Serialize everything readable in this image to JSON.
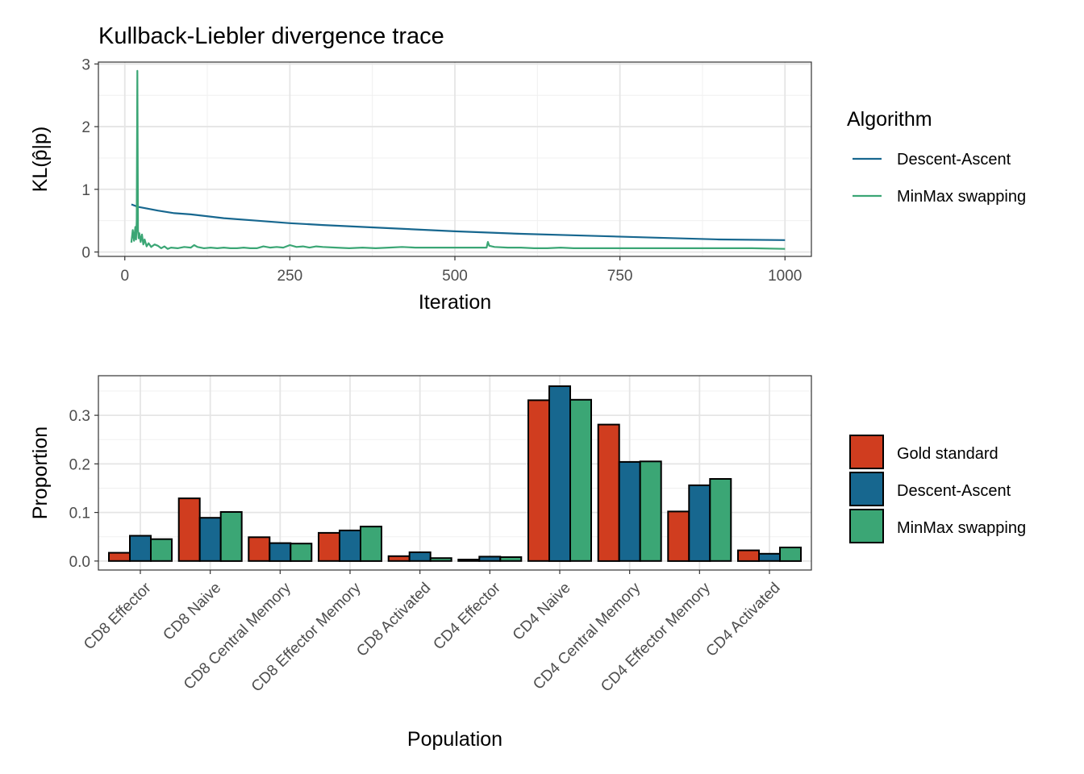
{
  "chart_data": [
    {
      "type": "line",
      "title": "Kullback-Liebler divergence trace",
      "xlabel": "Iteration",
      "ylabel": "KL(p̂|p)",
      "xlim": [
        -40,
        1040
      ],
      "ylim": [
        -0.07,
        3.03
      ],
      "x_ticks": [
        0,
        250,
        500,
        750,
        1000
      ],
      "y_ticks": [
        0,
        1,
        2,
        3
      ],
      "x_tick_labels": [
        "0",
        "250",
        "500",
        "750",
        "1000"
      ],
      "y_tick_labels": [
        "0",
        "1",
        "2",
        "3"
      ],
      "grid": true,
      "legend": {
        "title": "Algorithm",
        "position": "right"
      },
      "series": [
        {
          "name": "Descent-Ascent",
          "color": "#17678F",
          "x": [
            10,
            20,
            30,
            50,
            75,
            100,
            150,
            200,
            250,
            300,
            400,
            500,
            600,
            700,
            800,
            900,
            1000
          ],
          "values": [
            0.76,
            0.72,
            0.7,
            0.66,
            0.62,
            0.6,
            0.54,
            0.5,
            0.46,
            0.43,
            0.38,
            0.33,
            0.29,
            0.26,
            0.23,
            0.2,
            0.19
          ]
        },
        {
          "name": "MinMax swapping",
          "color": "#3BA675",
          "x": [
            10,
            12,
            14,
            16,
            17,
            18,
            19,
            20,
            21,
            22,
            24,
            26,
            28,
            30,
            33,
            36,
            40,
            45,
            50,
            55,
            60,
            65,
            70,
            80,
            90,
            100,
            105,
            110,
            120,
            130,
            140,
            150,
            160,
            170,
            180,
            190,
            200,
            210,
            220,
            230,
            240,
            250,
            260,
            270,
            280,
            290,
            300,
            320,
            340,
            360,
            380,
            400,
            420,
            440,
            460,
            480,
            500,
            520,
            540,
            548,
            550,
            552,
            556,
            560,
            580,
            600,
            620,
            640,
            660,
            680,
            700,
            750,
            800,
            850,
            900,
            950,
            1000
          ],
          "values": [
            0.15,
            0.35,
            0.18,
            0.4,
            0.2,
            0.5,
            2.89,
            0.35,
            0.22,
            0.3,
            0.16,
            0.28,
            0.12,
            0.2,
            0.09,
            0.14,
            0.08,
            0.12,
            0.1,
            0.06,
            0.09,
            0.05,
            0.07,
            0.06,
            0.08,
            0.07,
            0.11,
            0.08,
            0.06,
            0.07,
            0.06,
            0.07,
            0.06,
            0.06,
            0.07,
            0.06,
            0.06,
            0.09,
            0.07,
            0.08,
            0.07,
            0.11,
            0.08,
            0.09,
            0.07,
            0.09,
            0.08,
            0.07,
            0.06,
            0.07,
            0.06,
            0.07,
            0.08,
            0.07,
            0.07,
            0.07,
            0.07,
            0.07,
            0.07,
            0.07,
            0.16,
            0.1,
            0.09,
            0.08,
            0.07,
            0.07,
            0.06,
            0.06,
            0.07,
            0.06,
            0.06,
            0.06,
            0.06,
            0.06,
            0.06,
            0.06,
            0.05
          ]
        }
      ]
    },
    {
      "type": "bar",
      "xlabel": "Population",
      "ylabel": "Proportion",
      "ylim": [
        -0.0185,
        0.3815
      ],
      "y_ticks": [
        0.0,
        0.1,
        0.2,
        0.3
      ],
      "y_tick_labels": [
        "0.0",
        "0.1",
        "0.2",
        "0.3"
      ],
      "grid": true,
      "legend": {
        "position": "right"
      },
      "categories": [
        "CD8 Effector",
        "CD8 Naive",
        "CD8 Central Memory",
        "CD8 Effector Memory",
        "CD8 Activated",
        "CD4 Effector",
        "CD4 Naive",
        "CD4 Central Memory",
        "CD4 Effector Memory",
        "CD4 Activated"
      ],
      "series": [
        {
          "name": "Gold standard",
          "color": "#D03D1F",
          "values": [
            0.017,
            0.129,
            0.049,
            0.058,
            0.01,
            0.003,
            0.331,
            0.281,
            0.102,
            0.022
          ]
        },
        {
          "name": "Descent-Ascent",
          "color": "#17678F",
          "values": [
            0.052,
            0.089,
            0.037,
            0.063,
            0.018,
            0.009,
            0.36,
            0.204,
            0.156,
            0.015
          ]
        },
        {
          "name": "MinMax swapping",
          "color": "#3BA675",
          "values": [
            0.045,
            0.101,
            0.036,
            0.071,
            0.006,
            0.008,
            0.332,
            0.205,
            0.169,
            0.028
          ]
        }
      ]
    }
  ]
}
